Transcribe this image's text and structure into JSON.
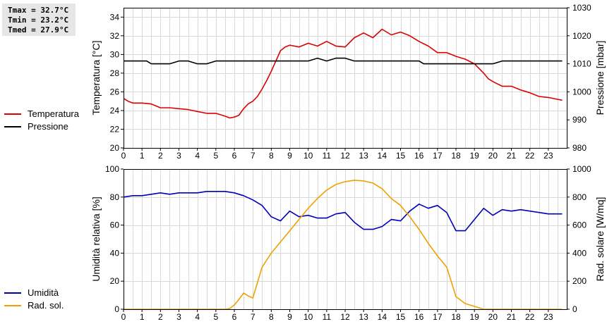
{
  "stats": {
    "tmax": "Tmax = 32.7°C",
    "tmin": "Tmin = 23.2°C",
    "tmed": "Tmed = 27.9°C"
  },
  "colors": {
    "temperature": "#dd0000",
    "pressure": "#000000",
    "humidity": "#0000bb",
    "radiation": "#f0a000",
    "grid": "#d8d8d8"
  },
  "chart_data": [
    {
      "type": "line",
      "x_ticks": [
        "0",
        "1",
        "2",
        "3",
        "4",
        "5",
        "6",
        "7",
        "8",
        "9",
        "10",
        "11",
        "12",
        "13",
        "14",
        "15",
        "16",
        "17",
        "18",
        "19",
        "20",
        "21",
        "22",
        "23"
      ],
      "xlim": [
        0,
        24
      ],
      "ylabel": "Temperatura [°C]",
      "ylim": [
        20,
        35
      ],
      "y_ticks": [
        "20",
        "22",
        "24",
        "26",
        "28",
        "30",
        "32",
        "34"
      ],
      "ylabel_right": "Pressione [mbar]",
      "ylim_right": [
        980,
        1030
      ],
      "y_ticks_right": [
        "980",
        "990",
        "1000",
        "1010",
        "1020",
        "1030"
      ],
      "grid": true,
      "legend_position": "left",
      "series": [
        {
          "name": "Temperatura",
          "axis": "left",
          "x": [
            0,
            0.25,
            0.5,
            1,
            1.5,
            2,
            2.5,
            3,
            3.5,
            4,
            4.5,
            5,
            5.5,
            5.75,
            6,
            6.25,
            6.5,
            6.75,
            7,
            7.25,
            7.5,
            7.75,
            8,
            8.25,
            8.5,
            8.75,
            9,
            9.5,
            10,
            10.5,
            11,
            11.5,
            12,
            12.5,
            13,
            13.5,
            14,
            14.5,
            15,
            15.5,
            16,
            16.5,
            17,
            17.5,
            18,
            18.5,
            19,
            19.25,
            19.5,
            19.75,
            20,
            20.5,
            21,
            21.5,
            22,
            22.5,
            23,
            23.5,
            23.75
          ],
          "y": [
            25.3,
            25.0,
            24.8,
            24.8,
            24.7,
            24.3,
            24.3,
            24.2,
            24.1,
            23.9,
            23.7,
            23.7,
            23.4,
            23.2,
            23.3,
            23.5,
            24.2,
            24.7,
            25.0,
            25.5,
            26.3,
            27.2,
            28.2,
            29.3,
            30.4,
            30.8,
            31.0,
            30.8,
            31.2,
            30.9,
            31.4,
            30.9,
            30.8,
            31.8,
            32.3,
            31.8,
            32.7,
            32.1,
            32.4,
            32.0,
            31.4,
            30.9,
            30.2,
            30.2,
            29.8,
            29.5,
            29.0,
            28.5,
            28.0,
            27.4,
            27.1,
            26.6,
            26.6,
            26.2,
            25.9,
            25.5,
            25.4,
            25.2,
            25.1
          ]
        },
        {
          "name": "Pressione",
          "axis": "right",
          "x": [
            0,
            1.25,
            1.5,
            2,
            2.5,
            3,
            3.5,
            4,
            4.5,
            5,
            5.5,
            6,
            6.5,
            7,
            8,
            9,
            10,
            10.5,
            11,
            11.5,
            12,
            12.5,
            13,
            14,
            15,
            16,
            16.25,
            16.5,
            17,
            18,
            19,
            20,
            20.5,
            21,
            22,
            23,
            23.75
          ],
          "y": [
            1011,
            1011,
            1010,
            1010,
            1010,
            1011,
            1011,
            1010,
            1010,
            1011,
            1011,
            1011,
            1011,
            1011,
            1011,
            1011,
            1011,
            1012,
            1011,
            1012,
            1012,
            1011,
            1011,
            1011,
            1011,
            1011,
            1010,
            1010,
            1010,
            1010,
            1010,
            1010,
            1011,
            1011,
            1011,
            1011,
            1011
          ]
        }
      ]
    },
    {
      "type": "line",
      "x_ticks": [
        "0",
        "1",
        "2",
        "3",
        "4",
        "5",
        "6",
        "7",
        "8",
        "9",
        "10",
        "11",
        "12",
        "13",
        "14",
        "15",
        "16",
        "17",
        "18",
        "19",
        "20",
        "21",
        "22",
        "23"
      ],
      "xlim": [
        0,
        24
      ],
      "ylabel": "Umidità relativa [%]",
      "ylim": [
        0,
        100
      ],
      "y_ticks": [
        "0",
        "20",
        "40",
        "60",
        "80",
        "100"
      ],
      "ylabel_right": "Rad. solare [W/mq]",
      "ylim_right": [
        0,
        1000
      ],
      "y_ticks_right": [
        "0",
        "200",
        "400",
        "600",
        "800",
        "1000"
      ],
      "grid": true,
      "legend_position": "left",
      "series": [
        {
          "name": "Umidità",
          "axis": "left",
          "x": [
            0,
            0.5,
            1,
            1.5,
            2,
            2.5,
            3,
            3.5,
            4,
            4.5,
            5,
            5.5,
            6,
            6.5,
            7,
            7.5,
            8,
            8.5,
            9,
            9.5,
            10,
            10.5,
            11,
            11.5,
            12,
            12.5,
            13,
            13.5,
            14,
            14.5,
            15,
            15.5,
            16,
            16.5,
            17,
            17.5,
            18,
            18.5,
            19,
            19.5,
            20,
            20.5,
            21,
            21.5,
            22,
            22.5,
            23,
            23.5,
            23.75
          ],
          "y": [
            80,
            81,
            81,
            82,
            83,
            82,
            83,
            83,
            83,
            84,
            84,
            84,
            83,
            81,
            78,
            74,
            66,
            63,
            70,
            66,
            67,
            65,
            65,
            68,
            69,
            62,
            57,
            57,
            59,
            64,
            63,
            70,
            75,
            72,
            74,
            69,
            56,
            56,
            64,
            72,
            67,
            71,
            70,
            71,
            70,
            69,
            68,
            68,
            68
          ]
        },
        {
          "name": "Rad. sol.",
          "axis": "right",
          "x": [
            0,
            5.5,
            5.75,
            6,
            6.25,
            6.5,
            6.75,
            7,
            7.5,
            8,
            8.5,
            9,
            9.5,
            10,
            10.5,
            11,
            11.5,
            12,
            12.5,
            13,
            13.5,
            14,
            14.5,
            15,
            15.5,
            16,
            16.5,
            17,
            17.5,
            18,
            18.5,
            19,
            19.5,
            20,
            20.5,
            21,
            23.75
          ],
          "y": [
            0,
            0,
            5,
            30,
            70,
            115,
            95,
            80,
            300,
            400,
            480,
            560,
            640,
            720,
            790,
            850,
            890,
            910,
            920,
            915,
            900,
            860,
            790,
            740,
            660,
            570,
            470,
            380,
            300,
            90,
            40,
            20,
            0,
            0,
            0,
            0,
            0
          ]
        }
      ]
    }
  ]
}
